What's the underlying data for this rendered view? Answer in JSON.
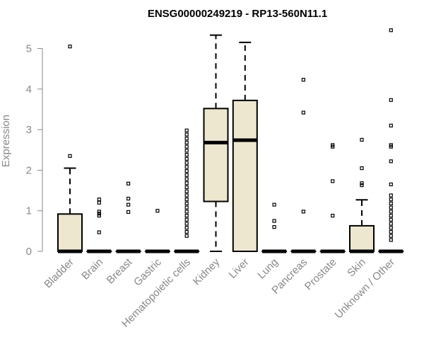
{
  "chart_data": {
    "type": "box",
    "title": "ENSG00000249219 - RP13-560N11.1",
    "ylabel": "Expression",
    "xlabel": "",
    "ylim": [
      0,
      5.5
    ],
    "yticks": [
      0,
      1,
      2,
      3,
      4,
      5
    ],
    "grid": false,
    "colors": {
      "box_fill": "#ede7cf",
      "stroke": "#000000",
      "axis": "#888888"
    },
    "categories": [
      "Bladder",
      "Brain",
      "Breast",
      "Gastric",
      "Hematopoietic cells",
      "Kidney",
      "Liver",
      "Lung",
      "Pancreas",
      "Prostate",
      "Skin",
      "Unknown / Other"
    ],
    "boxes": [
      {
        "name": "Bladder",
        "q1": 0,
        "median": 0,
        "q3": 0.92,
        "whisker_low": 0,
        "whisker_high": 2.05,
        "outliers": [
          2.35,
          5.05
        ]
      },
      {
        "name": "Brain",
        "q1": 0,
        "median": 0,
        "q3": 0,
        "whisker_low": 0,
        "whisker_high": 0,
        "outliers": [
          0.47,
          0.88,
          0.93,
          0.98,
          1.2,
          1.28
        ]
      },
      {
        "name": "Breast",
        "q1": 0,
        "median": 0,
        "q3": 0,
        "whisker_low": 0,
        "whisker_high": 0,
        "outliers": [
          0.97,
          1.15,
          1.3,
          1.67
        ]
      },
      {
        "name": "Gastric",
        "q1": 0,
        "median": 0,
        "q3": 0,
        "whisker_low": 0,
        "whisker_high": 0,
        "outliers": [
          1.0
        ]
      },
      {
        "name": "Hematopoietic cells",
        "q1": 0,
        "median": 0,
        "q3": 0,
        "whisker_low": 0,
        "whisker_high": 0,
        "outliers": [
          0.38,
          0.48,
          0.58,
          0.68,
          0.78,
          0.88,
          0.98,
          1.08,
          1.18,
          1.28,
          1.38,
          1.48,
          1.58,
          1.68,
          1.78,
          1.88,
          1.98,
          2.08,
          2.18,
          2.28,
          2.38,
          2.48,
          2.58,
          2.68,
          2.78,
          2.88,
          2.98
        ]
      },
      {
        "name": "Kidney",
        "q1": 1.23,
        "median": 2.68,
        "q3": 3.52,
        "whisker_low": 0,
        "whisker_high": 5.33,
        "outliers": []
      },
      {
        "name": "Liver",
        "q1": 0,
        "median": 2.74,
        "q3": 3.72,
        "whisker_low": 0,
        "whisker_high": 5.15,
        "outliers": []
      },
      {
        "name": "Lung",
        "q1": 0,
        "median": 0,
        "q3": 0,
        "whisker_low": 0,
        "whisker_high": 0,
        "outliers": [
          0.6,
          0.75,
          1.15
        ]
      },
      {
        "name": "Pancreas",
        "q1": 0,
        "median": 0,
        "q3": 0,
        "whisker_low": 0,
        "whisker_high": 0,
        "outliers": [
          0.98,
          3.42,
          4.23
        ]
      },
      {
        "name": "Prostate",
        "q1": 0,
        "median": 0,
        "q3": 0,
        "whisker_low": 0,
        "whisker_high": 0,
        "outliers": [
          0.88,
          1.73,
          2.58,
          2.62
        ]
      },
      {
        "name": "Skin",
        "q1": 0,
        "median": 0,
        "q3": 0.63,
        "whisker_low": 0,
        "whisker_high": 1.27,
        "outliers": [
          1.63,
          1.68,
          2.05,
          2.75
        ]
      },
      {
        "name": "Unknown / Other",
        "q1": 0,
        "median": 0,
        "q3": 0,
        "whisker_low": 0,
        "whisker_high": 0,
        "outliers": [
          0.28,
          0.38,
          0.48,
          0.58,
          0.68,
          0.78,
          0.88,
          0.98,
          1.08,
          1.18,
          1.28,
          1.38,
          1.65,
          2.22,
          2.58,
          2.62,
          3.1,
          3.73,
          5.45
        ]
      }
    ]
  }
}
